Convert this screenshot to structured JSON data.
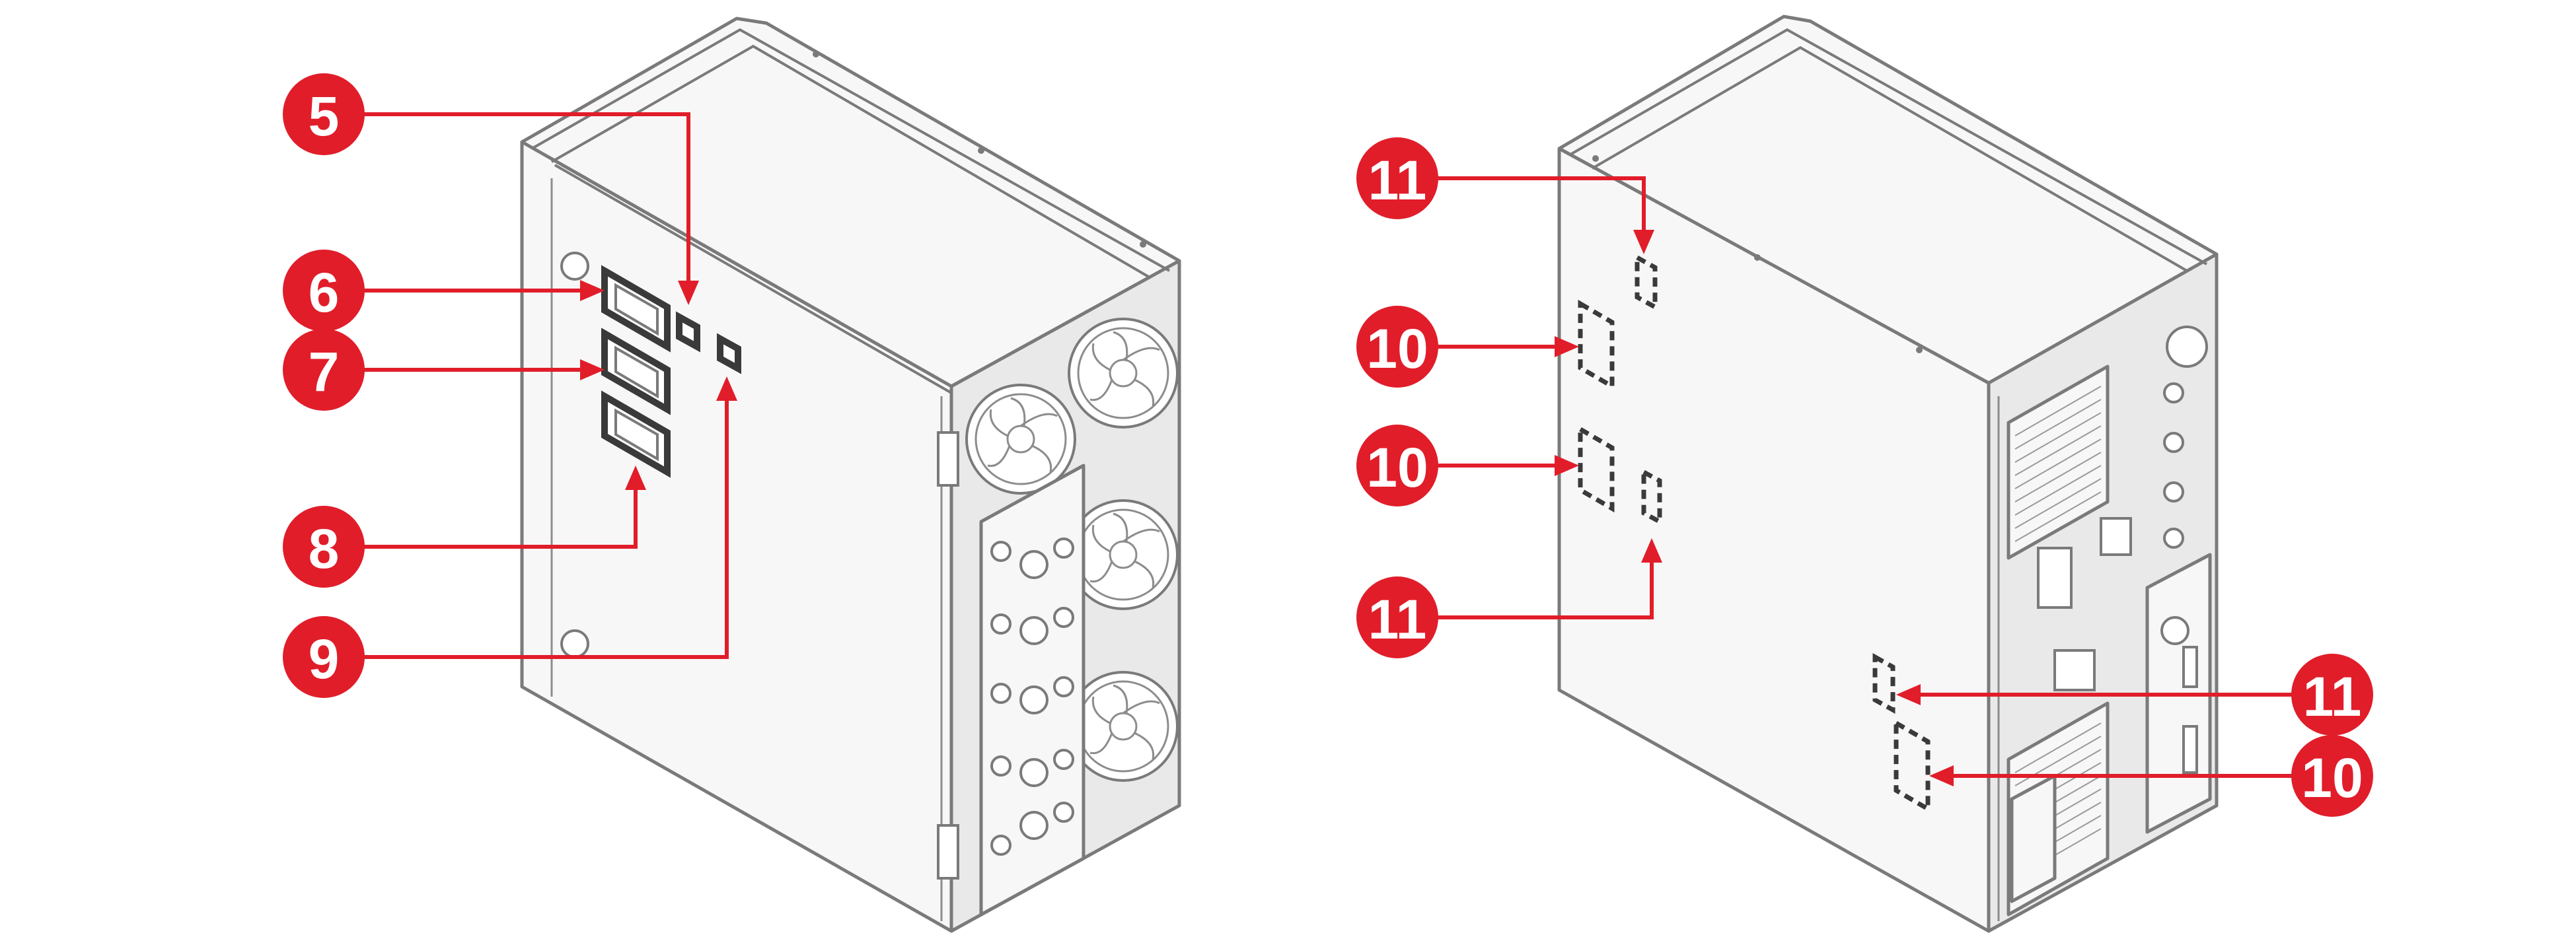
{
  "callouts": [
    {
      "id": "c5",
      "label": "5"
    },
    {
      "id": "c6",
      "label": "6"
    },
    {
      "id": "c7",
      "label": "7"
    },
    {
      "id": "c8",
      "label": "8"
    },
    {
      "id": "c9",
      "label": "9"
    },
    {
      "id": "c11a",
      "label": "11"
    },
    {
      "id": "c10a",
      "label": "10"
    },
    {
      "id": "c10b",
      "label": "10"
    },
    {
      "id": "c11b",
      "label": "11"
    },
    {
      "id": "c11c",
      "label": "11"
    },
    {
      "id": "c10c",
      "label": "10"
    }
  ],
  "colors": {
    "callout": "#e11d2a",
    "outline": "#7a7a7a",
    "label_frame": "#3a3a3a"
  }
}
